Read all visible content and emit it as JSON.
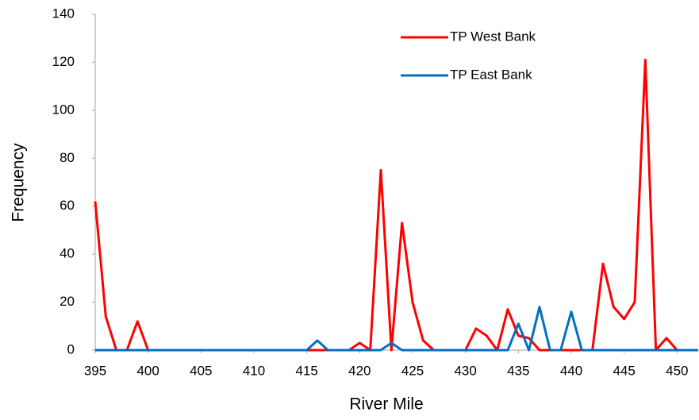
{
  "chart_data": {
    "type": "line",
    "x_label": "River Mile",
    "y_label": "Frequency",
    "x": [
      395,
      396,
      397,
      398,
      399,
      400,
      401,
      402,
      403,
      404,
      405,
      406,
      407,
      408,
      409,
      410,
      411,
      412,
      413,
      414,
      415,
      416,
      417,
      418,
      419,
      420,
      421,
      422,
      423,
      424,
      425,
      426,
      427,
      428,
      429,
      430,
      431,
      432,
      433,
      434,
      435,
      436,
      437,
      438,
      439,
      440,
      441,
      442,
      443,
      444,
      445,
      446,
      447,
      448,
      449,
      450,
      451,
      452
    ],
    "series": [
      {
        "name": "TP West Bank",
        "color": "#ff0000",
        "values": [
          62,
          14,
          0,
          0,
          12,
          0,
          0,
          0,
          0,
          0,
          0,
          0,
          0,
          0,
          0,
          0,
          0,
          0,
          0,
          0,
          0,
          0,
          0,
          0,
          0,
          3,
          0,
          75,
          0,
          53,
          20,
          4,
          0,
          0,
          0,
          0,
          9,
          6,
          0,
          17,
          6,
          5,
          0,
          0,
          0,
          0,
          0,
          0,
          36,
          18,
          13,
          20,
          121,
          0,
          5,
          0,
          0,
          0
        ]
      },
      {
        "name": "TP East Bank",
        "color": "#0070c0",
        "values": [
          0,
          0,
          0,
          0,
          0,
          0,
          0,
          0,
          0,
          0,
          0,
          0,
          0,
          0,
          0,
          0,
          0,
          0,
          0,
          0,
          0,
          4,
          0,
          0,
          0,
          0,
          0,
          0,
          3,
          0,
          0,
          0,
          0,
          0,
          0,
          0,
          0,
          0,
          0,
          0,
          11,
          0,
          18,
          0,
          0,
          16,
          0,
          0,
          0,
          0,
          0,
          0,
          0,
          0,
          0,
          0,
          0,
          0
        ]
      }
    ],
    "xlim": [
      395,
      452
    ],
    "xticks": [
      395,
      400,
      405,
      410,
      415,
      420,
      425,
      430,
      435,
      440,
      445,
      450
    ],
    "ylim": [
      0,
      140
    ],
    "yticks": [
      0,
      20,
      40,
      60,
      80,
      100,
      120,
      140
    ],
    "grid": false,
    "legend": "upper-right"
  }
}
